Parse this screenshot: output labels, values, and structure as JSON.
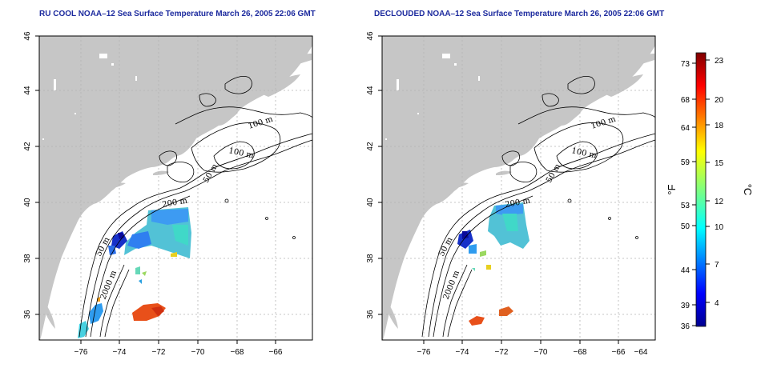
{
  "panels": [
    {
      "title": "RU COOL NOAA–12 Sea Surface Temperature March 26, 2005 22:06 GMT",
      "contour_labels": [
        "100 m",
        "100 m",
        "50 m",
        "200 m",
        "50 m",
        "2000 m"
      ]
    },
    {
      "title": "DECLOUDED NOAA–12 Sea Surface Temperature March 26, 2005 22:06 GMT",
      "contour_labels": [
        "100 m",
        "100 m",
        "50 m",
        "200 m",
        "50 m",
        "2000 m"
      ]
    }
  ],
  "axes": {
    "lon_ticks": [
      "−76",
      "−74",
      "−72",
      "−70",
      "−68",
      "−66",
      "−64"
    ],
    "lat_ticks": [
      "36",
      "38",
      "40",
      "42",
      "44",
      "46"
    ]
  },
  "colorbar": {
    "f_label": "°F",
    "c_label": "°C",
    "f_ticks": [
      "73",
      "68",
      "64",
      "59",
      "53",
      "50",
      "44",
      "39",
      "36"
    ],
    "c_ticks": [
      "23",
      "20",
      "18",
      "15",
      "12",
      "10",
      "7",
      "4"
    ]
  },
  "colors": {
    "land": "#c6c6c6",
    "title": "#1c2a9e",
    "grid": "#b4b4b4"
  }
}
